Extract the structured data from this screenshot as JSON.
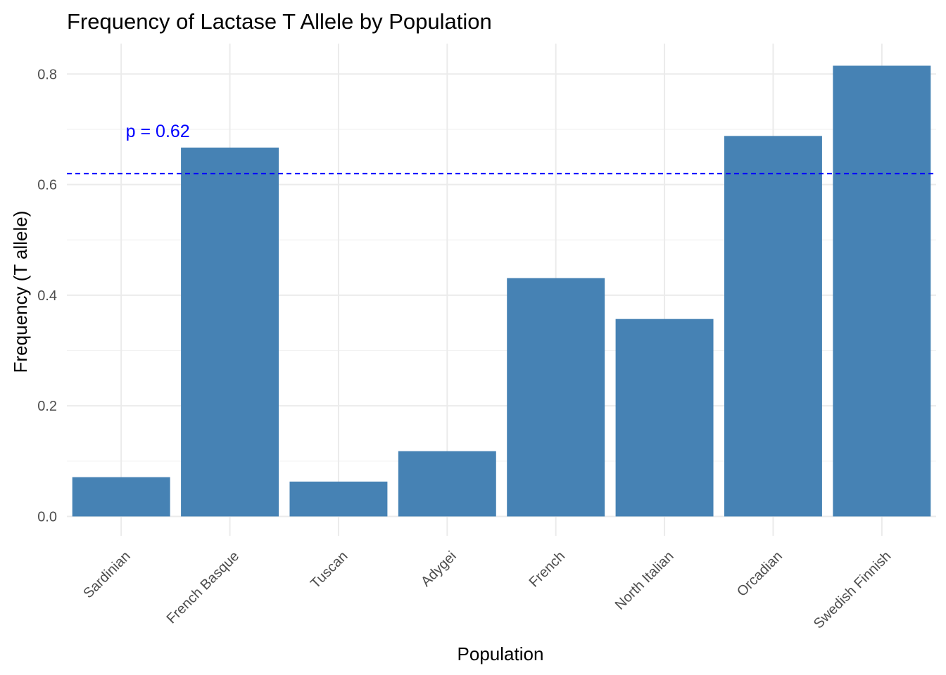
{
  "chart_data": {
    "type": "bar",
    "title": "Frequency of Lactase T Allele by Population",
    "xlabel": "Population",
    "ylabel": "Frequency (T allele)",
    "categories": [
      "Sardinian",
      "French Basque",
      "Tuscan",
      "Adygei",
      "French",
      "North Italian",
      "Orcadian",
      "Swedish Finnish"
    ],
    "values": [
      0.071,
      0.667,
      0.063,
      0.118,
      0.431,
      0.357,
      0.688,
      0.815
    ],
    "yticks": [
      0.0,
      0.2,
      0.4,
      0.6,
      0.8
    ],
    "ytick_labels": [
      "0.0",
      "0.2",
      "0.4",
      "0.6",
      "0.8"
    ],
    "ylim": [
      -0.035,
      0.855
    ],
    "grid": true,
    "bar_color": "#4682B4",
    "reference_line": {
      "value": 0.62,
      "label": "p = 0.62",
      "color": "#0000FF",
      "style": "dashed"
    }
  }
}
